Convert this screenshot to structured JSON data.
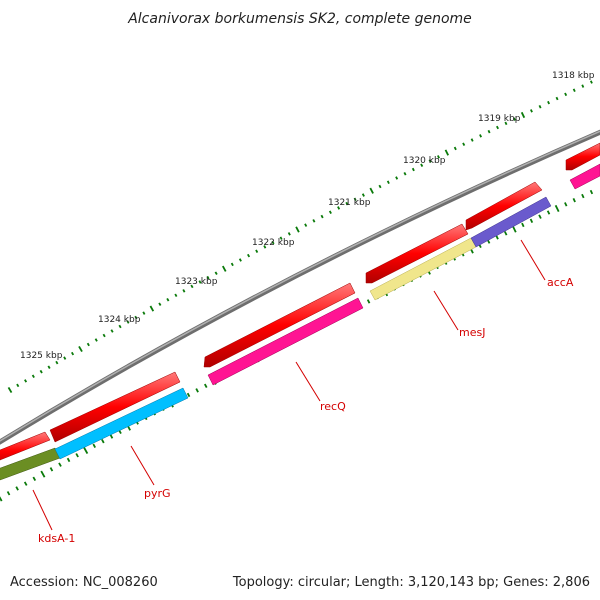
{
  "title": "Alcanivorax borkumensis SK2, complete genome",
  "accession": "Accession: NC_008260",
  "summary": "Topology: circular; Length: 3,120,143 bp; Genes: 2,806",
  "scale_labels": [
    "1318 kbp",
    "1319 kbp",
    "1320 kbp",
    "1321 kbp",
    "1322 kbp",
    "1323 kbp",
    "1324 kbp",
    "1325 kbp"
  ],
  "gene_labels": [
    "accA",
    "mesJ",
    "recQ",
    "pyrG",
    "kdsA-1"
  ],
  "colors": {
    "backbone": "#808080",
    "cds": "#ff0000",
    "accA": "#6a5acd",
    "mesJ": "#f0e68c",
    "recQ": "#ff1493",
    "pyrG": "#00bfff",
    "kdsA": "#6b8e23",
    "ticks": "#0a7a0a",
    "labels": "#d40000"
  }
}
